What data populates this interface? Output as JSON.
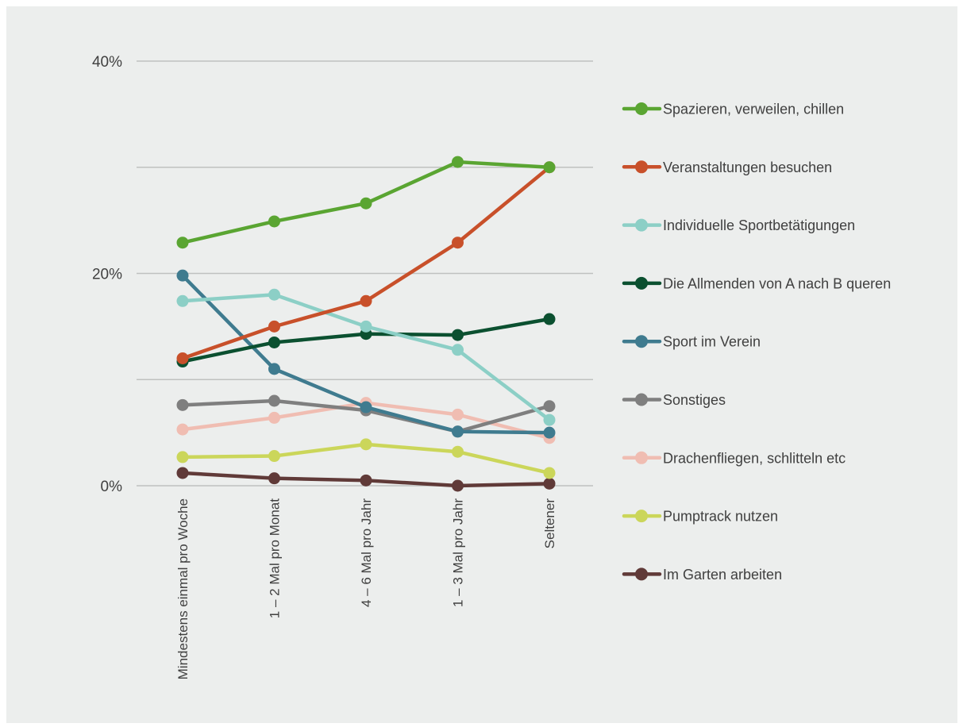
{
  "chart_data": {
    "type": "line",
    "categories": [
      "Mindestens einmal pro Woche",
      "1 – 2 Mal pro Monat",
      "4 – 6 Mal pro Jahr",
      "1 – 3 Mal pro Jahr",
      "Seltener"
    ],
    "y_ticks": [
      "0%",
      "20%",
      "40%"
    ],
    "ylim": [
      0,
      40
    ],
    "grid": true,
    "legend_position": "right",
    "background_color": "#eceeed",
    "grid_color": "#bfc1c0",
    "axis_text_color": "#404040",
    "series": [
      {
        "name": "Spazieren, verweilen, chillen",
        "color": "#5aa532",
        "values": [
          22.9,
          24.9,
          26.6,
          30.5,
          30.0
        ]
      },
      {
        "name": "Veranstaltungen besuchen",
        "color": "#c8502a",
        "values": [
          12.0,
          15.0,
          17.4,
          22.9,
          30.0
        ]
      },
      {
        "name": "Individuelle Sportbetätigungen",
        "color": "#8ccfc6",
        "values": [
          17.4,
          18.0,
          15.0,
          12.8,
          6.2
        ]
      },
      {
        "name": "Die Allmenden von A nach B queren",
        "color": "#0b5030",
        "values": [
          11.7,
          13.5,
          14.3,
          14.2,
          15.7
        ]
      },
      {
        "name": "Sport im Verein",
        "color": "#3f7b8f",
        "values": [
          19.8,
          11.0,
          7.4,
          5.1,
          5.0
        ]
      },
      {
        "name": "Sonstiges",
        "color": "#7f7f7f",
        "values": [
          7.6,
          8.0,
          7.1,
          5.1,
          7.5
        ]
      },
      {
        "name": "Drachenfliegen, schlitteln etc",
        "color": "#f0bdb2",
        "values": [
          5.3,
          6.4,
          7.8,
          6.7,
          4.5
        ]
      },
      {
        "name": "Pumptrack nutzen",
        "color": "#cbd65a",
        "values": [
          2.7,
          2.8,
          3.9,
          3.2,
          1.2
        ]
      },
      {
        "name": "Im Garten arbeiten",
        "color": "#603a38",
        "values": [
          1.2,
          0.7,
          0.5,
          0.0,
          0.2
        ]
      }
    ]
  }
}
